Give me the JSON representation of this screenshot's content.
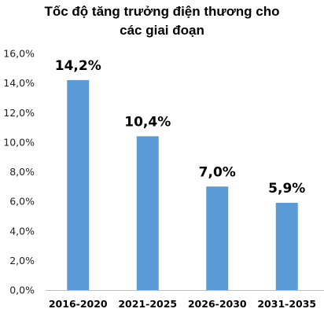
{
  "chart_data": {
    "type": "bar",
    "title_lines": [
      "Tốc độ tăng trưởng điện thương cho",
      "các giai đoạn"
    ],
    "categories": [
      "2016-2020",
      "2021-2025",
      "2026-2030",
      "2031-2035"
    ],
    "values": [
      14.2,
      10.4,
      7.0,
      5.9
    ],
    "data_labels": [
      "14,2%",
      "10,4%",
      "7,0%",
      "5,9%"
    ],
    "y_ticks": [
      "0,0%",
      "2,0%",
      "4,0%",
      "6,0%",
      "8,0%",
      "10,0%",
      "12,0%",
      "14,0%",
      "16,0%"
    ],
    "ylim": [
      0,
      16
    ],
    "xlabel": "",
    "ylabel": "",
    "grid": false,
    "legend": "none",
    "bar_color": "#5B9BD5",
    "axis_color": "#BFBFBF"
  }
}
